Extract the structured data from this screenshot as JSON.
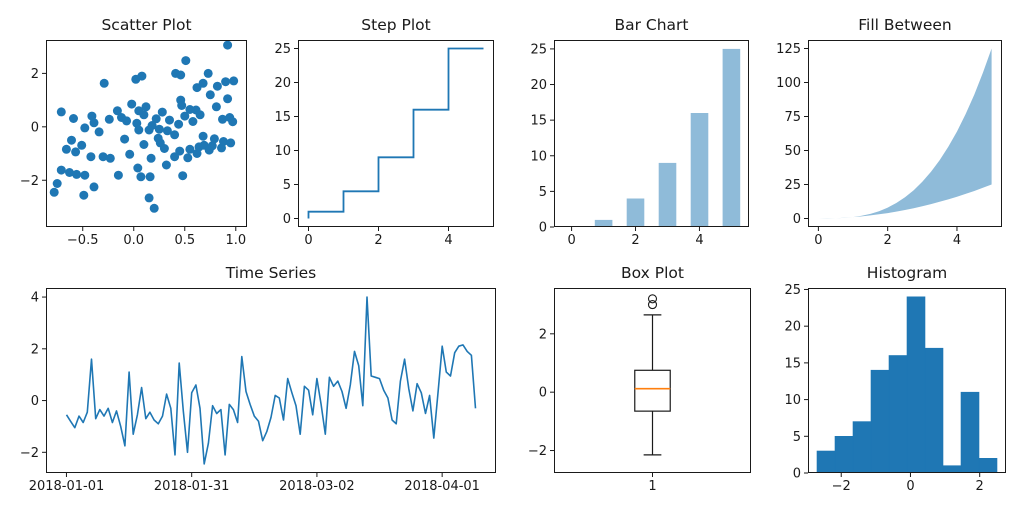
{
  "figure": {
    "background": "#ffffff",
    "axis_color": "#1a1a1a",
    "accent_blue": "#1f77b4",
    "light_blue": "#8fbbd9",
    "median_orange": "#ff7f0e"
  },
  "chart_data": [
    {
      "type": "scatter",
      "title": "Scatter Plot",
      "xlim": [
        -0.86,
        1.11
      ],
      "ylim": [
        -3.75,
        3.25
      ],
      "xtick_positions": [
        -0.5,
        0.0,
        0.5,
        1.0
      ],
      "xtick_labels": [
        "−0.5",
        "0.0",
        "0.5",
        "1.0"
      ],
      "ytick_positions": [
        -2,
        0,
        2
      ],
      "ytick_labels": [
        "−2",
        "0",
        "2"
      ],
      "color": "#1f77b4",
      "marker_diameter": 9,
      "points": [
        [
          -0.71,
          0.56
        ],
        [
          -0.59,
          0.31
        ],
        [
          -0.41,
          0.4
        ],
        [
          -0.39,
          0.15
        ],
        [
          -0.24,
          0.28
        ],
        [
          -0.16,
          0.6
        ],
        [
          -0.12,
          0.35
        ],
        [
          -0.07,
          0.22
        ],
        [
          0.03,
          0.13
        ],
        [
          -0.29,
          1.63
        ],
        [
          0.02,
          1.78
        ],
        [
          0.08,
          1.9
        ],
        [
          0.92,
          3.06
        ],
        [
          0.51,
          2.48
        ],
        [
          0.41,
          2.0
        ],
        [
          0.73,
          2.0
        ],
        [
          0.46,
          1.94
        ],
        [
          0.62,
          1.47
        ],
        [
          0.68,
          1.63
        ],
        [
          0.82,
          1.52
        ],
        [
          0.9,
          1.69
        ],
        [
          0.98,
          1.72
        ],
        [
          0.75,
          1.2
        ],
        [
          0.92,
          1.05
        ],
        [
          0.46,
          1.0
        ],
        [
          0.61,
          0.63
        ],
        [
          0.81,
          0.75
        ],
        [
          0.87,
          0.28
        ],
        [
          0.94,
          0.35
        ],
        [
          0.97,
          0.19
        ],
        [
          0.1,
          0.45
        ],
        [
          0.22,
          0.3
        ],
        [
          0.28,
          0.55
        ],
        [
          0.35,
          0.25
        ],
        [
          0.18,
          0.05
        ],
        [
          0.33,
          -0.15
        ],
        [
          0.44,
          0.1
        ],
        [
          0.5,
          0.4
        ],
        [
          0.05,
          0.6
        ],
        [
          -0.02,
          0.85
        ],
        [
          0.58,
          0.2
        ],
        [
          0.4,
          -0.3
        ],
        [
          0.26,
          -0.6
        ],
        [
          0.12,
          0.75
        ],
        [
          0.65,
          0.45
        ],
        [
          0.55,
          0.65
        ],
        [
          0.47,
          0.8
        ],
        [
          -0.48,
          -0.04
        ],
        [
          -0.34,
          -0.19
        ],
        [
          -0.61,
          -0.5
        ],
        [
          -0.51,
          -0.69
        ],
        [
          -0.66,
          -0.84
        ],
        [
          -0.57,
          -0.94
        ],
        [
          -0.09,
          -0.46
        ],
        [
          0.05,
          -0.12
        ],
        [
          0.1,
          -0.66
        ],
        [
          -0.04,
          -1.03
        ],
        [
          -0.3,
          -1.12
        ],
        [
          -0.23,
          -1.18
        ],
        [
          -0.42,
          -1.12
        ],
        [
          -0.71,
          -1.62
        ],
        [
          -0.63,
          -1.71
        ],
        [
          -0.56,
          -1.78
        ],
        [
          -0.48,
          -1.81
        ],
        [
          -0.75,
          -2.12
        ],
        [
          -0.78,
          -2.45
        ],
        [
          -0.49,
          -2.56
        ],
        [
          -0.39,
          -2.25
        ],
        [
          -0.15,
          -1.81
        ],
        [
          0.04,
          -1.54
        ],
        [
          0.07,
          -1.87
        ],
        [
          0.15,
          -0.12
        ],
        [
          0.25,
          -0.09
        ],
        [
          0.24,
          -0.43
        ],
        [
          0.3,
          -0.81
        ],
        [
          0.17,
          -1.18
        ],
        [
          0.16,
          -1.87
        ],
        [
          0.4,
          -1.12
        ],
        [
          0.45,
          -0.91
        ],
        [
          0.53,
          -1.16
        ],
        [
          0.55,
          -0.84
        ],
        [
          0.62,
          -1.0
        ],
        [
          0.64,
          -0.75
        ],
        [
          0.69,
          -0.69
        ],
        [
          0.74,
          -0.87
        ],
        [
          0.77,
          -0.71
        ],
        [
          0.86,
          -0.79
        ],
        [
          0.48,
          -1.83
        ],
        [
          0.32,
          -1.43
        ],
        [
          0.15,
          -2.66
        ],
        [
          0.2,
          -3.05
        ],
        [
          0.88,
          -0.55
        ],
        [
          0.95,
          -0.6
        ],
        [
          0.79,
          -0.45
        ],
        [
          0.68,
          -0.35
        ]
      ]
    },
    {
      "type": "step",
      "title": "Step Plot",
      "where": "pre",
      "x": [
        0,
        1,
        2,
        3,
        4,
        5
      ],
      "y": [
        0,
        1,
        4,
        9,
        16,
        25
      ],
      "xlim": [
        -0.3,
        5.3
      ],
      "ylim": [
        -1.25,
        26.25
      ],
      "xtick_positions": [
        0,
        2,
        4
      ],
      "xtick_labels": [
        "0",
        "2",
        "4"
      ],
      "ytick_positions": [
        0,
        5,
        10,
        15,
        20,
        25
      ],
      "ytick_labels": [
        "0",
        "5",
        "10",
        "15",
        "20",
        "25"
      ],
      "color": "#1f77b4"
    },
    {
      "type": "bar",
      "title": "Bar Chart",
      "categories": [
        0,
        1,
        2,
        3,
        4,
        5
      ],
      "values": [
        0,
        1,
        4,
        9,
        16,
        25
      ],
      "bar_width": 0.55,
      "xlim": [
        -0.55,
        5.55
      ],
      "ylim": [
        0,
        26.25
      ],
      "xtick_positions": [
        0,
        2,
        4
      ],
      "xtick_labels": [
        "0",
        "2",
        "4"
      ],
      "ytick_positions": [
        0,
        5,
        10,
        15,
        20,
        25
      ],
      "ytick_labels": [
        "0",
        "5",
        "10",
        "15",
        "20",
        "25"
      ],
      "color": "#8fbbd9"
    },
    {
      "type": "area",
      "title": "Fill Between",
      "x": [
        0,
        0.25,
        0.5,
        0.75,
        1,
        1.25,
        1.5,
        1.75,
        2,
        2.25,
        2.5,
        2.75,
        3,
        3.25,
        3.5,
        3.75,
        4,
        4.25,
        4.5,
        4.75,
        5
      ],
      "lower": [
        0,
        0.063,
        0.25,
        0.563,
        1,
        1.563,
        2.25,
        3.063,
        4,
        5.063,
        6.25,
        7.563,
        9,
        10.563,
        12.25,
        14.063,
        16,
        18.063,
        20.25,
        22.563,
        25
      ],
      "upper": [
        0,
        0.016,
        0.125,
        0.422,
        1,
        1.953,
        3.375,
        5.359,
        8,
        11.391,
        15.625,
        20.797,
        27,
        34.328,
        42.875,
        52.734,
        64,
        76.766,
        91.125,
        107.172,
        125
      ],
      "xlim": [
        -0.3,
        5.3
      ],
      "ylim": [
        -6.25,
        131.25
      ],
      "xtick_positions": [
        0,
        2,
        4
      ],
      "xtick_labels": [
        "0",
        "2",
        "4"
      ],
      "ytick_positions": [
        0,
        25,
        50,
        75,
        100,
        125
      ],
      "ytick_labels": [
        "0",
        "25",
        "50",
        "75",
        "100",
        "125"
      ],
      "color": "#8fbbd9"
    },
    {
      "type": "line",
      "title": "Time Series",
      "start_date": "2018-01-01",
      "values": [
        -0.55,
        -0.8,
        -1.05,
        -0.6,
        -0.85,
        -0.45,
        1.6,
        -0.7,
        -0.35,
        -0.6,
        -0.3,
        -0.85,
        -0.4,
        -1.0,
        -1.75,
        1.1,
        -1.3,
        -0.55,
        0.5,
        -0.7,
        -0.45,
        -0.75,
        -0.9,
        -0.6,
        0.25,
        -0.3,
        -2.1,
        1.45,
        -0.4,
        -2.0,
        0.3,
        0.6,
        -0.3,
        -2.45,
        -1.65,
        -0.2,
        -0.5,
        -0.35,
        -2.1,
        -0.15,
        -0.35,
        -0.85,
        1.7,
        0.35,
        -0.15,
        -0.6,
        -0.8,
        -1.55,
        -1.2,
        -0.65,
        0.2,
        0.1,
        -0.75,
        0.85,
        0.3,
        -0.2,
        -1.3,
        0.55,
        0.4,
        -0.55,
        0.85,
        -0.15,
        -1.3,
        0.9,
        0.55,
        0.75,
        0.35,
        -0.3,
        0.6,
        1.9,
        1.35,
        -0.2,
        4.0,
        0.95,
        0.9,
        0.85,
        0.4,
        0.1,
        -0.75,
        -0.9,
        0.75,
        1.6,
        0.45,
        -0.4,
        0.65,
        0.3,
        -0.5,
        0.2,
        -1.45,
        0.3,
        2.1,
        1.1,
        0.95,
        1.85,
        2.1,
        2.15,
        1.9,
        1.75,
        -0.3
      ],
      "xlim": [
        -4.9,
        102.9
      ],
      "ylim": [
        -2.8,
        4.35
      ],
      "xtick_positions": [
        0,
        30,
        60,
        90
      ],
      "xtick_labels": [
        "2018-01-01",
        "2018-01-31",
        "2018-03-02",
        "2018-04-01"
      ],
      "ytick_positions": [
        -2,
        0,
        2,
        4
      ],
      "ytick_labels": [
        "−2",
        "0",
        "2",
        "4"
      ],
      "color": "#1f77b4"
    },
    {
      "type": "box",
      "title": "Box Plot",
      "position": 1,
      "box_width": 0.18,
      "cap_width": 0.09,
      "stats": {
        "median": 0.12,
        "q1": -0.65,
        "q3": 0.75,
        "whisker_low": -2.15,
        "whisker_high": 2.65,
        "outliers": [
          3.0,
          3.2
        ]
      },
      "xlim": [
        0.5,
        1.5
      ],
      "ylim": [
        -2.77,
        3.57
      ],
      "xtick_positions": [
        1
      ],
      "xtick_labels": [
        "1"
      ],
      "ytick_positions": [
        -2,
        0,
        2
      ],
      "ytick_labels": [
        "−2",
        "0",
        "2"
      ],
      "line_color": "#1a1a1a",
      "median_color": "#ff7f0e"
    },
    {
      "type": "histogram",
      "title": "Histogram",
      "bin_edges": [
        -2.7,
        -2.18,
        -1.66,
        -1.14,
        -0.62,
        -0.1,
        0.42,
        0.94,
        1.46,
        1.98,
        2.5
      ],
      "counts": [
        3,
        5,
        7,
        14,
        16,
        24,
        17,
        1,
        11,
        2
      ],
      "xlim": [
        -2.96,
        2.76
      ],
      "ylim": [
        0,
        25.2
      ],
      "xtick_positions": [
        -2,
        0,
        2
      ],
      "xtick_labels": [
        "−2",
        "0",
        "2"
      ],
      "ytick_positions": [
        0,
        5,
        10,
        15,
        20,
        25
      ],
      "ytick_labels": [
        "0",
        "5",
        "10",
        "15",
        "20",
        "25"
      ],
      "color": "#1f77b4"
    }
  ]
}
